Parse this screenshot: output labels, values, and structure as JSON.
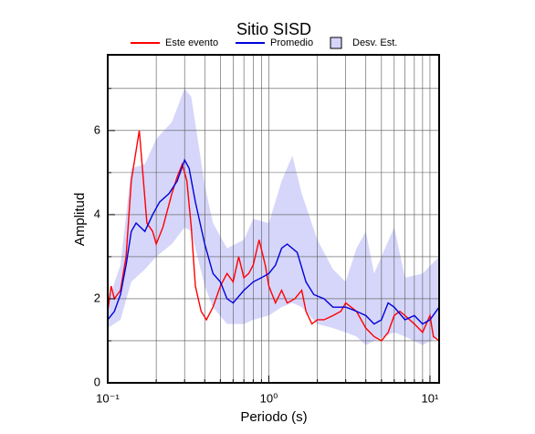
{
  "chart_data": {
    "type": "line",
    "title": "Sitio SISD",
    "xlabel": "Periodo (s)",
    "ylabel": "Amplitud",
    "xscale": "log",
    "grid": true,
    "xlim": [
      0.1,
      11.4
    ],
    "ylim": [
      0,
      7.8
    ],
    "xticks": [
      {
        "value": 0.1,
        "label": "10⁻¹"
      },
      {
        "value": 1,
        "label": "10⁰"
      },
      {
        "value": 10,
        "label": "10¹"
      }
    ],
    "x_minor_ticks": [
      0.2,
      0.3,
      0.4,
      0.5,
      0.6,
      0.7,
      0.8,
      0.9,
      2,
      3,
      4,
      5,
      6,
      7,
      8,
      9
    ],
    "yticks": [
      0,
      2,
      4,
      6
    ],
    "y_minor_ticks": [
      1,
      3,
      5,
      7
    ],
    "band": {
      "name": "Desv. Est.",
      "color": "#d6d6fa",
      "x": [
        0.1,
        0.12,
        0.14,
        0.17,
        0.2,
        0.25,
        0.3,
        0.33,
        0.4,
        0.45,
        0.55,
        0.7,
        0.8,
        1.0,
        1.2,
        1.4,
        1.6,
        2.0,
        2.5,
        3,
        3.5,
        4,
        4.5,
        6,
        7,
        9,
        11.4
      ],
      "lower": [
        1.3,
        1.5,
        2.4,
        2.7,
        3.0,
        3.3,
        3.7,
        3.6,
        2.3,
        1.8,
        1.4,
        1.4,
        1.5,
        1.6,
        1.8,
        1.9,
        1.8,
        1.4,
        1.3,
        1.2,
        1.1,
        0.9,
        1.0,
        1.2,
        1.1,
        0.9,
        1.1
      ],
      "upper": [
        1.9,
        2.8,
        5.1,
        5.2,
        5.8,
        6.2,
        7.0,
        6.8,
        4.7,
        3.8,
        3.2,
        3.4,
        3.9,
        3.8,
        4.8,
        5.4,
        4.5,
        3.4,
        2.7,
        2.4,
        3.2,
        3.6,
        2.6,
        3.7,
        2.5,
        2.6,
        3.0
      ]
    },
    "series": [
      {
        "name": "Este evento",
        "color": "#ff0000",
        "x": [
          0.1,
          0.105,
          0.11,
          0.12,
          0.13,
          0.14,
          0.157,
          0.165,
          0.175,
          0.19,
          0.2,
          0.22,
          0.25,
          0.27,
          0.29,
          0.31,
          0.33,
          0.35,
          0.38,
          0.41,
          0.45,
          0.5,
          0.55,
          0.6,
          0.65,
          0.7,
          0.75,
          0.8,
          0.87,
          0.95,
          1.0,
          1.1,
          1.2,
          1.3,
          1.45,
          1.6,
          1.7,
          1.85,
          2.0,
          2.2,
          2.5,
          2.8,
          3.0,
          3.5,
          4,
          4.5,
          5,
          5.5,
          6,
          6.5,
          7,
          8,
          9,
          10,
          10.5,
          11.4
        ],
        "values": [
          1.7,
          2.3,
          2.0,
          2.2,
          3.0,
          4.8,
          6.0,
          5.0,
          3.8,
          3.6,
          3.3,
          3.7,
          4.5,
          4.9,
          5.2,
          4.8,
          3.7,
          2.3,
          1.7,
          1.5,
          1.8,
          2.3,
          2.6,
          2.4,
          3.0,
          2.5,
          2.6,
          2.8,
          3.4,
          2.8,
          2.3,
          1.9,
          2.2,
          1.9,
          2.0,
          2.2,
          1.7,
          1.4,
          1.5,
          1.5,
          1.6,
          1.7,
          1.9,
          1.7,
          1.3,
          1.1,
          1.0,
          1.2,
          1.6,
          1.7,
          1.6,
          1.4,
          1.2,
          1.6,
          1.1,
          1.0
        ]
      },
      {
        "name": "Promedio",
        "color": "#0000dd",
        "x": [
          0.1,
          0.11,
          0.12,
          0.13,
          0.14,
          0.15,
          0.17,
          0.19,
          0.21,
          0.24,
          0.27,
          0.3,
          0.32,
          0.35,
          0.4,
          0.45,
          0.5,
          0.55,
          0.6,
          0.7,
          0.8,
          0.9,
          1.0,
          1.1,
          1.2,
          1.3,
          1.5,
          1.7,
          1.9,
          2.2,
          2.5,
          3.0,
          3.5,
          4,
          4.5,
          5,
          5.5,
          6,
          7,
          8,
          9,
          10,
          11.4
        ],
        "values": [
          1.5,
          1.7,
          2.1,
          2.8,
          3.6,
          3.8,
          3.6,
          4.0,
          4.3,
          4.5,
          4.8,
          5.3,
          5.1,
          4.3,
          3.3,
          2.6,
          2.4,
          2.0,
          1.9,
          2.2,
          2.4,
          2.5,
          2.6,
          2.8,
          3.2,
          3.3,
          3.1,
          2.4,
          2.1,
          2.0,
          1.8,
          1.8,
          1.7,
          1.6,
          1.4,
          1.5,
          1.9,
          1.8,
          1.5,
          1.6,
          1.4,
          1.5,
          1.8
        ]
      }
    ]
  }
}
